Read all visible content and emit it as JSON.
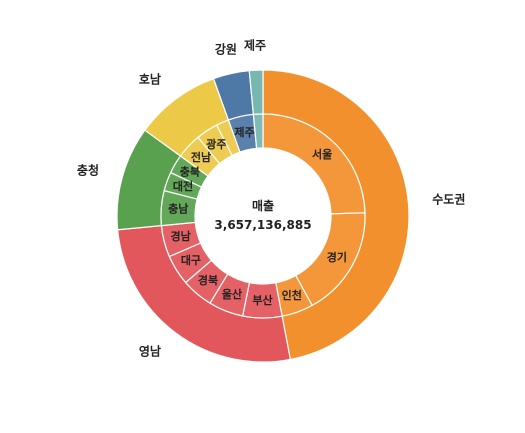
{
  "chart_data": {
    "type": "sunburst",
    "center": {
      "title": "매출",
      "value": "3,657,136,885"
    },
    "groups": [
      {
        "name": "수도권",
        "color": "#F3902E",
        "value": 47.0,
        "children": [
          {
            "name": "서울",
            "value": 24.5
          },
          {
            "name": "경기",
            "value": 17.5
          },
          {
            "name": "인천",
            "value": 5.0
          }
        ]
      },
      {
        "name": "영남",
        "color": "#E2575B",
        "value": 26.5,
        "children": [
          {
            "name": "부산",
            "value": 6.2
          },
          {
            "name": "울산",
            "value": 5.5
          },
          {
            "name": "경북",
            "value": 5.0
          },
          {
            "name": "대구",
            "value": 4.8
          },
          {
            "name": "경남",
            "value": 5.0
          }
        ]
      },
      {
        "name": "충청",
        "color": "#59A14F",
        "value": 11.5,
        "children": [
          {
            "name": "충남",
            "value": 5.5
          },
          {
            "name": "대전",
            "value": 3.0
          },
          {
            "name": "충북",
            "value": 3.0
          }
        ]
      },
      {
        "name": "호남",
        "color": "#EDC948",
        "value": 9.5,
        "children": [
          {
            "name": "전남",
            "value": 4.0
          },
          {
            "name": "광주",
            "value": 3.5
          },
          {
            "name": "(unlabeled)",
            "value": 2.0
          }
        ]
      },
      {
        "name": "강원",
        "color": "#4E79A7",
        "value": 4.0,
        "children": [
          {
            "name": "제주",
            "value": 4.0
          }
        ]
      },
      {
        "name": "제주",
        "color": "#76B7B2",
        "value": 1.5,
        "children": [
          {
            "name": "",
            "value": 1.5
          }
        ]
      }
    ]
  }
}
